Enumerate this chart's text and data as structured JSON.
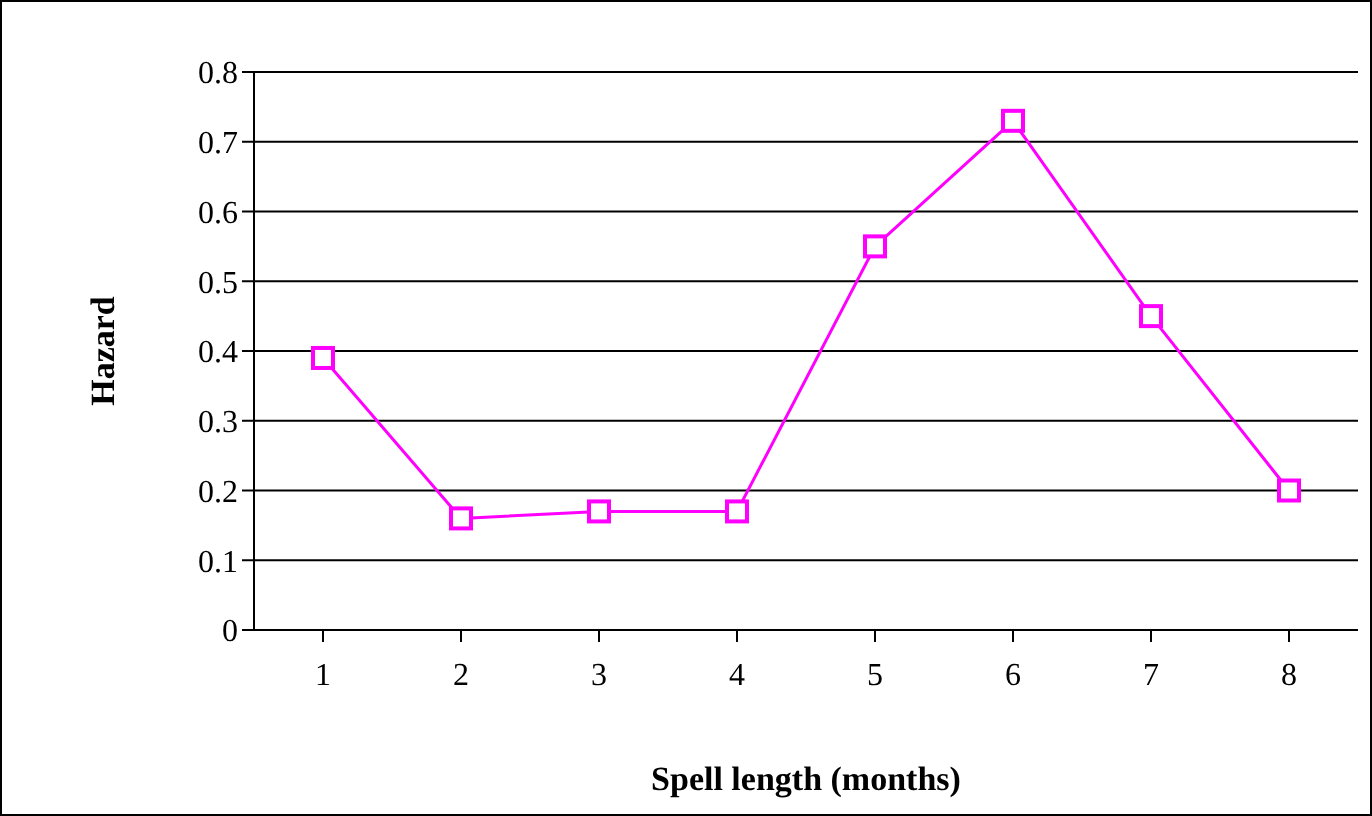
{
  "chart_data": {
    "type": "line",
    "xlabel": "Spell length (months)",
    "ylabel": "Hazard",
    "categories": [
      "1",
      "2",
      "3",
      "4",
      "5",
      "6",
      "7",
      "8"
    ],
    "series": [
      {
        "color": "#ff00ff",
        "values": [
          0.39,
          0.16,
          0.17,
          0.17,
          0.55,
          0.73,
          0.45,
          0.2
        ]
      }
    ],
    "ylim": [
      0,
      0.8
    ],
    "yticks": [
      0,
      0.1,
      0.2,
      0.3,
      0.4,
      0.5,
      0.6,
      0.7,
      0.8
    ],
    "grid": "y",
    "marker": "square",
    "line_style": "solid",
    "legend": false
  }
}
